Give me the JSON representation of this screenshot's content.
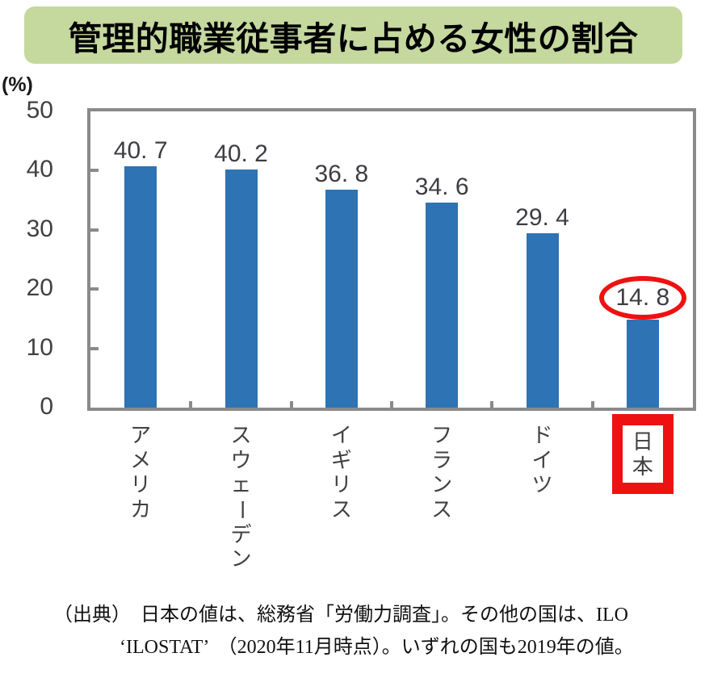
{
  "title": "管理的職業従事者に占める女性の割合",
  "chart_data": {
    "type": "bar",
    "title": "管理的職業従事者に占める女性の割合",
    "categories": [
      "アメリカ",
      "スウェーデン",
      "イギリス",
      "フランス",
      "ドイツ",
      "日本"
    ],
    "values": [
      40.7,
      40.2,
      36.8,
      34.6,
      29.4,
      14.8
    ],
    "value_labels": [
      "40. 7",
      "40. 2",
      "36. 8",
      "34. 6",
      "29. 4",
      "14. 8"
    ],
    "unit_label": "(%)",
    "xlabel": "",
    "ylabel": "",
    "ylim": [
      0,
      50
    ],
    "yticks": [
      0,
      10,
      20,
      30,
      40,
      50
    ],
    "grid": false,
    "legend_position": "none",
    "bar_color": "#2E73B3",
    "highlight": {
      "category": "日本",
      "index": 5,
      "value": 14.8,
      "value_circled": true,
      "label_boxed": true,
      "color": "#EE1111"
    }
  },
  "source_note": {
    "line1": "（出典）　日本の値は、総務省「労働力調査」。その他の国は、ILO",
    "line2": "‘ILOSTAT’　（2020年11月時点）。いずれの国も2019年の値。"
  },
  "colors": {
    "banner_bg": "#C5D89E",
    "bar": "#2E73B3",
    "axis_frame": "#8A8A8A",
    "tick_text": "#404040",
    "value_text": "#3D3D43",
    "highlight_red": "#EE1111",
    "title_text": "#000000"
  }
}
